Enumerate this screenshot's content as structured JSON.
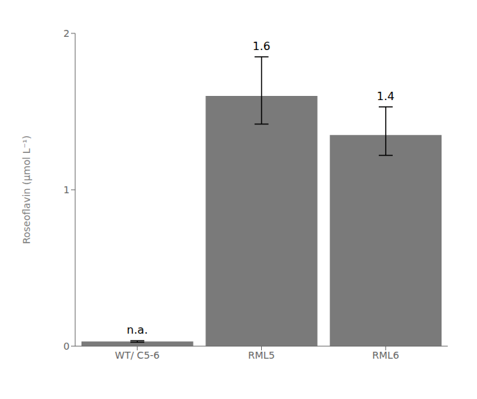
{
  "chart_data": {
    "type": "bar",
    "categories": [
      "WT/ C5-6",
      "RML5",
      "RML6"
    ],
    "values": [
      0.03,
      1.6,
      1.35
    ],
    "error_upper": [
      0.005,
      0.25,
      0.18
    ],
    "error_lower": [
      0.005,
      0.18,
      0.13
    ],
    "color": "#7a7a7a",
    "ylabel": "Roseoflavin (μmol L⁻¹)",
    "ylim": [
      0,
      2
    ],
    "yticks": [
      0,
      1,
      2
    ],
    "grid": false,
    "annotations": [
      {
        "text": "n.a.",
        "category": "WT/ C5-6"
      },
      {
        "text": "1.6",
        "category": "RML5"
      },
      {
        "text": "1.4",
        "category": "RML6"
      }
    ]
  }
}
